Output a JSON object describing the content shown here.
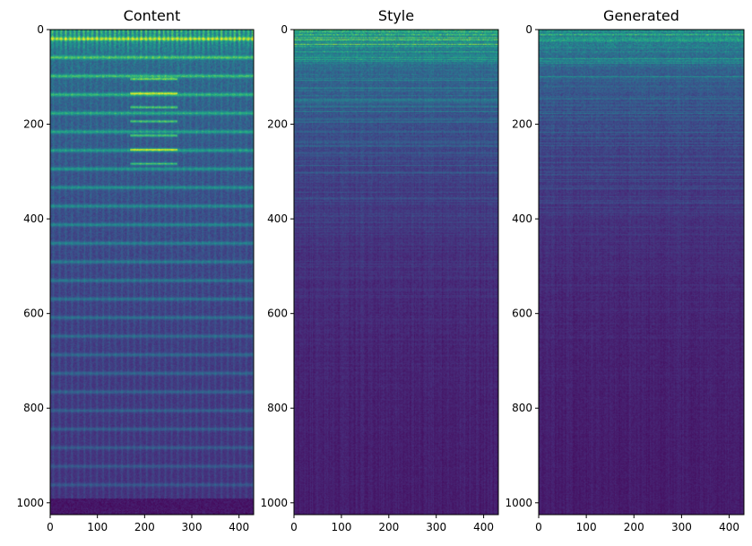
{
  "chart_data": [
    {
      "type": "heatmap",
      "title": "Content",
      "xlabel": "",
      "ylabel": "",
      "xlim": [
        0,
        431
      ],
      "ylim": [
        1025,
        0
      ],
      "xticks": [
        0,
        100,
        200,
        300,
        400
      ],
      "yticks": [
        0,
        200,
        400,
        600,
        800,
        1000
      ],
      "xtick_labels": [
        "0",
        "100",
        "200",
        "300",
        "400"
      ],
      "ytick_labels": [
        "0",
        "200",
        "400",
        "600",
        "800",
        "1000"
      ],
      "colormap": "viridis",
      "grid": false,
      "pattern": "content"
    },
    {
      "type": "heatmap",
      "title": "Style",
      "xlabel": "",
      "ylabel": "",
      "xlim": [
        0,
        431
      ],
      "ylim": [
        1025,
        0
      ],
      "xticks": [
        0,
        100,
        200,
        300,
        400
      ],
      "yticks": [
        0,
        200,
        400,
        600,
        800,
        1000
      ],
      "xtick_labels": [
        "0",
        "100",
        "200",
        "300",
        "400"
      ],
      "ytick_labels": [
        "0",
        "200",
        "400",
        "600",
        "800",
        "1000"
      ],
      "colormap": "viridis",
      "grid": false,
      "pattern": "style"
    },
    {
      "type": "heatmap",
      "title": "Generated",
      "xlabel": "",
      "ylabel": "",
      "xlim": [
        0,
        431
      ],
      "ylim": [
        1025,
        0
      ],
      "xticks": [
        0,
        100,
        200,
        300,
        400
      ],
      "yticks": [
        0,
        200,
        400,
        600,
        800,
        1000
      ],
      "xtick_labels": [
        "0",
        "100",
        "200",
        "300",
        "400"
      ],
      "ytick_labels": [
        "0",
        "200",
        "400",
        "600",
        "800",
        "1000"
      ],
      "colormap": "viridis",
      "grid": false,
      "pattern": "generated"
    }
  ]
}
